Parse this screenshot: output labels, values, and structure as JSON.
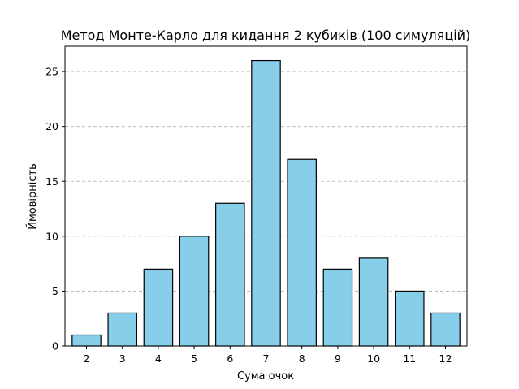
{
  "chart_data": {
    "type": "bar",
    "title": "Метод Монте-Карло для кидання 2 кубиків (100 симуляцій)",
    "xlabel": "Сума очок",
    "ylabel": "Ймовірність",
    "categories": [
      "2",
      "3",
      "4",
      "5",
      "6",
      "7",
      "8",
      "9",
      "10",
      "11",
      "12"
    ],
    "values": [
      1,
      3,
      7,
      10,
      13,
      26,
      17,
      7,
      8,
      5,
      3
    ],
    "ylim": [
      0,
      27.3
    ],
    "yticks": [
      0,
      5,
      10,
      15,
      20,
      25
    ],
    "grid": "y-dashed",
    "bar_color": "#87ceeb",
    "edge_color": "#000000",
    "legend": "none"
  }
}
